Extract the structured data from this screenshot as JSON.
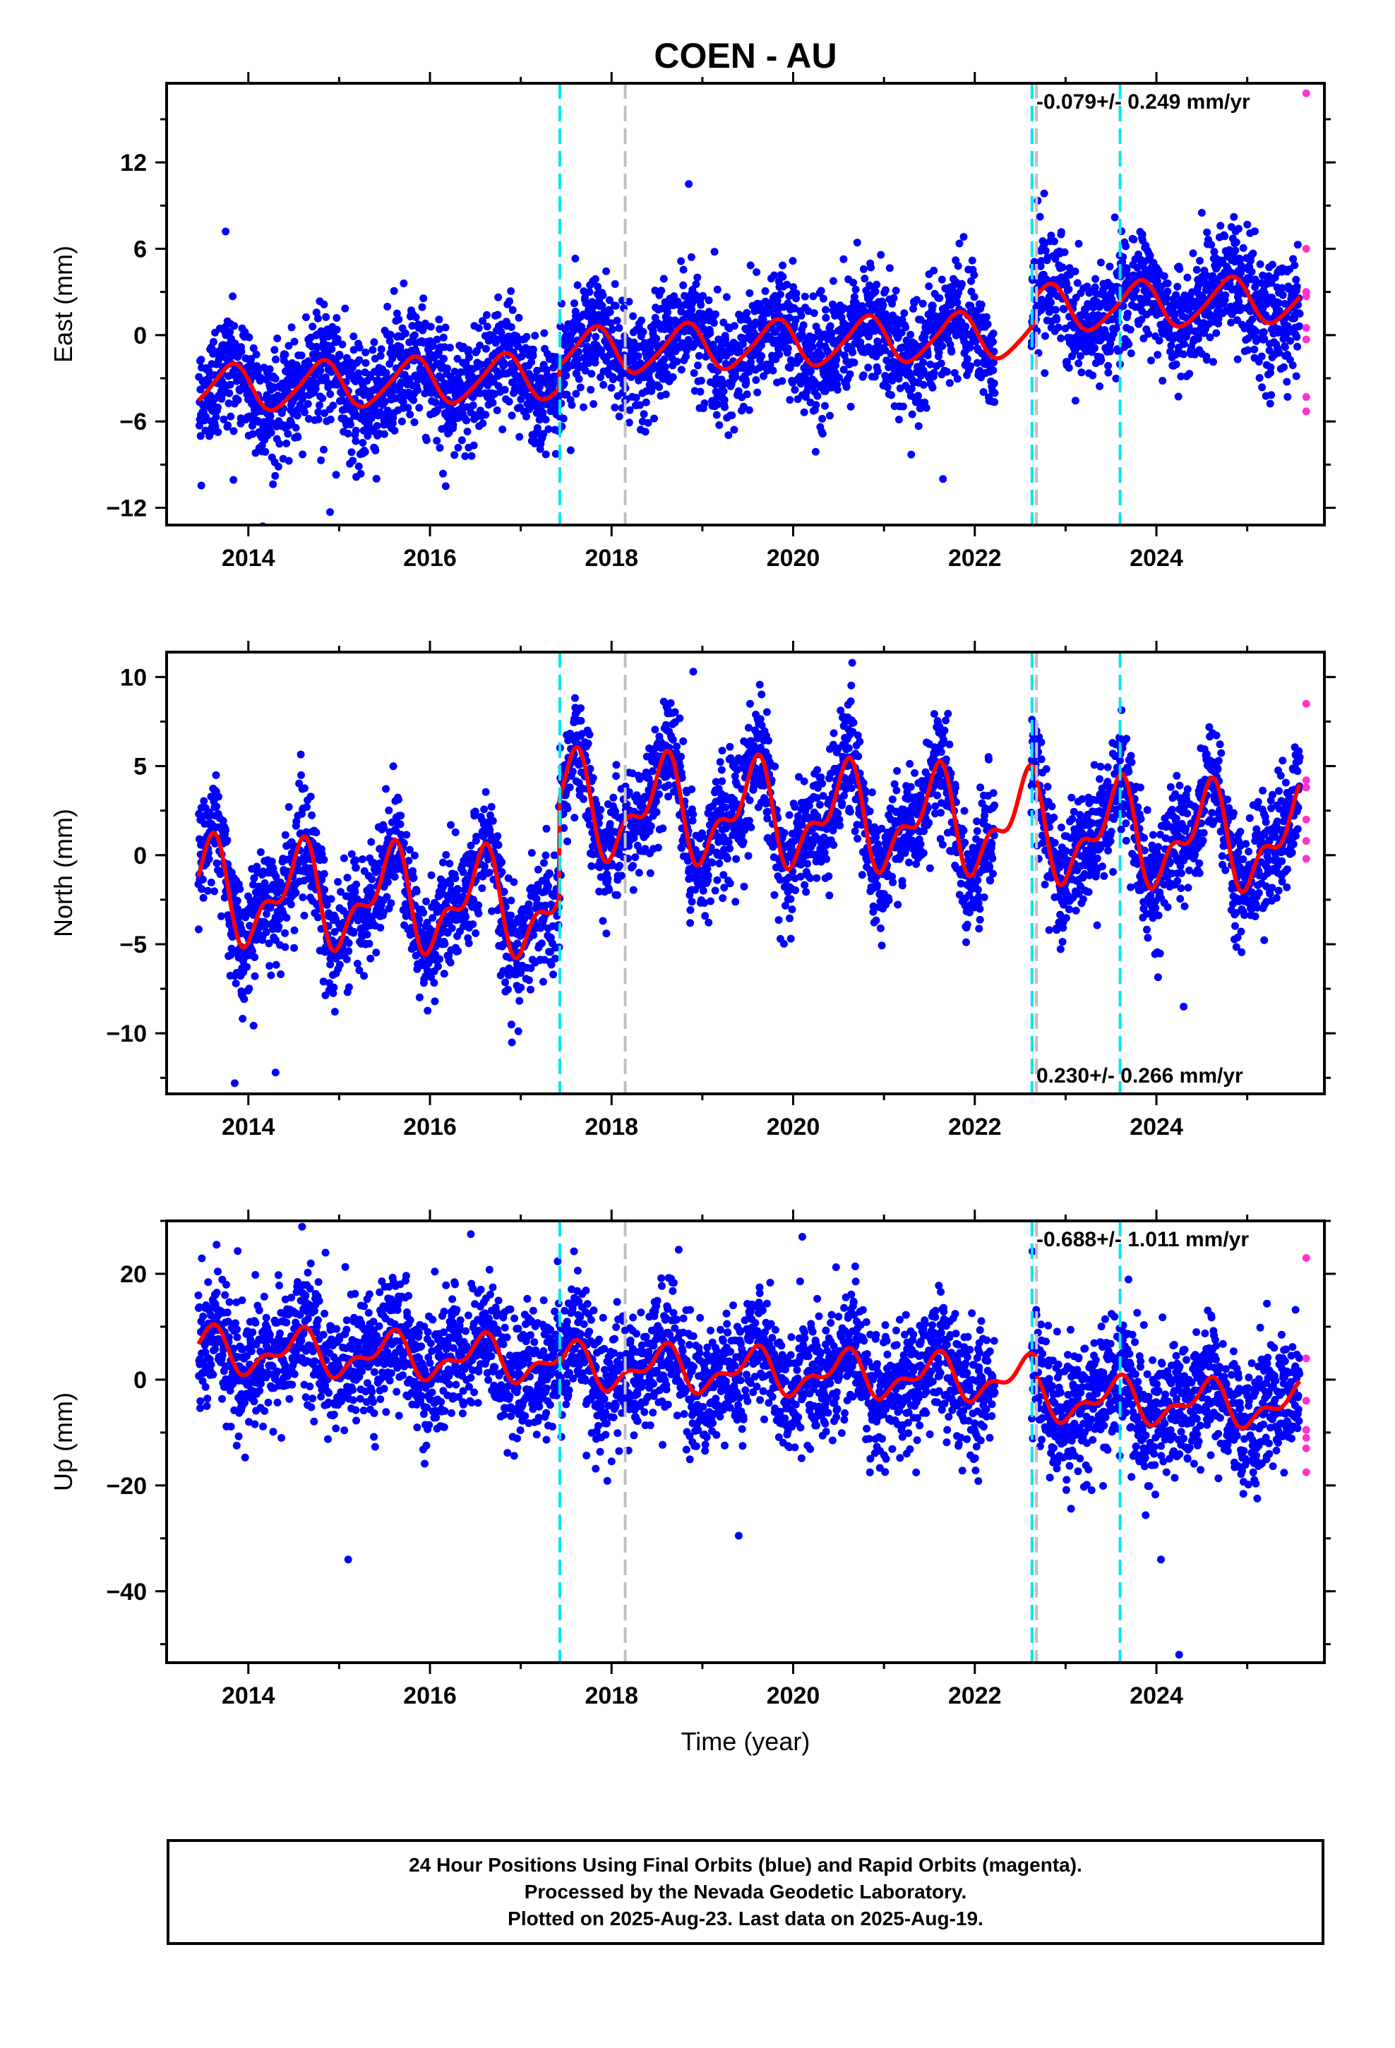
{
  "chart_data": [
    {
      "type": "scatter",
      "title": "COEN - AU",
      "ylabel": "East (mm)",
      "xlabel": "",
      "xlim": [
        2013.1,
        2025.85
      ],
      "ylim": [
        -13.2,
        17.5
      ],
      "yticks": [
        -12,
        -6,
        0,
        6,
        12
      ],
      "xticks": [
        2014,
        2016,
        2018,
        2020,
        2022,
        2024
      ],
      "xtick_labels": [
        "2014",
        "2016",
        "2018",
        "2020",
        "2022",
        "2024"
      ],
      "rate_label": "-0.079+/- 0.249 mm/yr",
      "rate_position": "top-right",
      "model": {
        "offsets": [
          [
            2013.45,
            -2.3
          ],
          [
            2017.43,
            -0.7
          ],
          [
            2022.68,
            1.0
          ]
        ],
        "trend_mm_per_yr": 0.25,
        "annual_amp": 1.6,
        "annual_phase": 2013.8,
        "semiannual_amp": 0.25
      },
      "scatter_sd": 2.0,
      "outliers": [
        [
          2014.9,
          -12.3
        ],
        [
          2018.85,
          10.5
        ],
        [
          2021.3,
          -8.3
        ],
        [
          2021.65,
          -10.0
        ],
        [
          2024.5,
          8.5
        ],
        [
          2017.55,
          -8.0
        ],
        [
          2014.8,
          -8.7
        ],
        [
          2013.75,
          7.2
        ]
      ],
      "rapid": [
        [
          2025.65,
          16.8
        ],
        [
          2025.65,
          6.0
        ],
        [
          2025.65,
          3.0
        ],
        [
          2025.65,
          2.7
        ],
        [
          2025.65,
          0.5
        ],
        [
          2025.65,
          -0.3
        ],
        [
          2025.65,
          -4.3
        ],
        [
          2025.65,
          -5.3
        ]
      ]
    },
    {
      "type": "scatter",
      "title": "",
      "ylabel": "North (mm)",
      "xlabel": "",
      "xlim": [
        2013.1,
        2025.85
      ],
      "ylim": [
        -13.4,
        11.4
      ],
      "yticks": [
        -10,
        -5,
        0,
        5,
        10
      ],
      "xticks": [
        2014,
        2016,
        2018,
        2020,
        2022,
        2024
      ],
      "xtick_labels": [
        "2014",
        "2016",
        "2018",
        "2020",
        "2022",
        "2024"
      ],
      "rate_label": "0.230+/- 0.266 mm/yr",
      "rate_position": "bottom-right",
      "model": {
        "offsets": [
          [
            2013.45,
            -3.3
          ],
          [
            2017.43,
            2.3
          ],
          [
            2022.68,
            2.0
          ]
        ],
        "trend_mm_per_yr": -0.2,
        "annual_amp": 2.4,
        "annual_phase": 2013.55,
        "semiannual_amp": 1.3
      },
      "scatter_sd": 1.6,
      "outliers": [
        [
          2013.85,
          -12.8
        ],
        [
          2018.9,
          10.3
        ],
        [
          2020.65,
          10.8
        ],
        [
          2014.3,
          -12.2
        ],
        [
          2024.3,
          -8.5
        ]
      ],
      "rapid": [
        [
          2025.65,
          8.5
        ],
        [
          2025.65,
          4.2
        ],
        [
          2025.65,
          3.8
        ],
        [
          2025.65,
          2.0
        ],
        [
          2025.65,
          0.8
        ],
        [
          2025.65,
          -0.2
        ]
      ]
    },
    {
      "type": "scatter",
      "title": "",
      "ylabel": "Up (mm)",
      "xlabel": "Time (year)",
      "xlim": [
        2013.1,
        2025.85
      ],
      "ylim": [
        -53.5,
        30
      ],
      "yticks": [
        -40,
        -20,
        0,
        20
      ],
      "xticks": [
        2014,
        2016,
        2018,
        2020,
        2022,
        2024
      ],
      "xtick_labels": [
        "2014",
        "2016",
        "2018",
        "2020",
        "2022",
        "2024"
      ],
      "rate_label": "-0.688+/- 1.011 mm/yr",
      "rate_position": "top-right",
      "model": {
        "offsets": [
          [
            2013.45,
            2.5
          ],
          [
            2017.43,
            1.5
          ],
          [
            2022.68,
            -2.0
          ]
        ],
        "trend_mm_per_yr": -0.5,
        "annual_amp": 3.5,
        "annual_phase": 2013.55,
        "semiannual_amp": 2.0
      },
      "scatter_sd": 6.0,
      "outliers": [
        [
          2015.1,
          -34.0
        ],
        [
          2016.45,
          27.5
        ],
        [
          2020.1,
          27.0
        ],
        [
          2024.25,
          -52.0
        ],
        [
          2024.05,
          -34.0
        ],
        [
          2019.4,
          -29.5
        ],
        [
          2013.65,
          25.5
        ],
        [
          2014.85,
          24.0
        ]
      ],
      "rapid": [
        [
          2025.65,
          23.0
        ],
        [
          2025.65,
          4.0
        ],
        [
          2025.65,
          -4.0
        ],
        [
          2025.65,
          -9.5
        ],
        [
          2025.65,
          -11.0
        ],
        [
          2025.65,
          -13.0
        ],
        [
          2025.65,
          -17.5
        ]
      ]
    }
  ],
  "events": {
    "cyan": [
      2017.43,
      2022.63,
      2023.6
    ],
    "grey": [
      2018.15,
      2022.68
    ]
  },
  "colors": {
    "final": "#0000ff",
    "rapid": "#ff33cc",
    "model": "#ff0000",
    "cyan_event": "#00e5f0",
    "grey_event": "#c0c0c0"
  },
  "footer": {
    "line1": "24 Hour Positions Using Final Orbits (blue) and Rapid Orbits (magenta).",
    "line2": "Processed by the Nevada Geodetic Laboratory.",
    "line3": "Plotted on 2025-Aug-23. Last data on 2025-Aug-19."
  }
}
